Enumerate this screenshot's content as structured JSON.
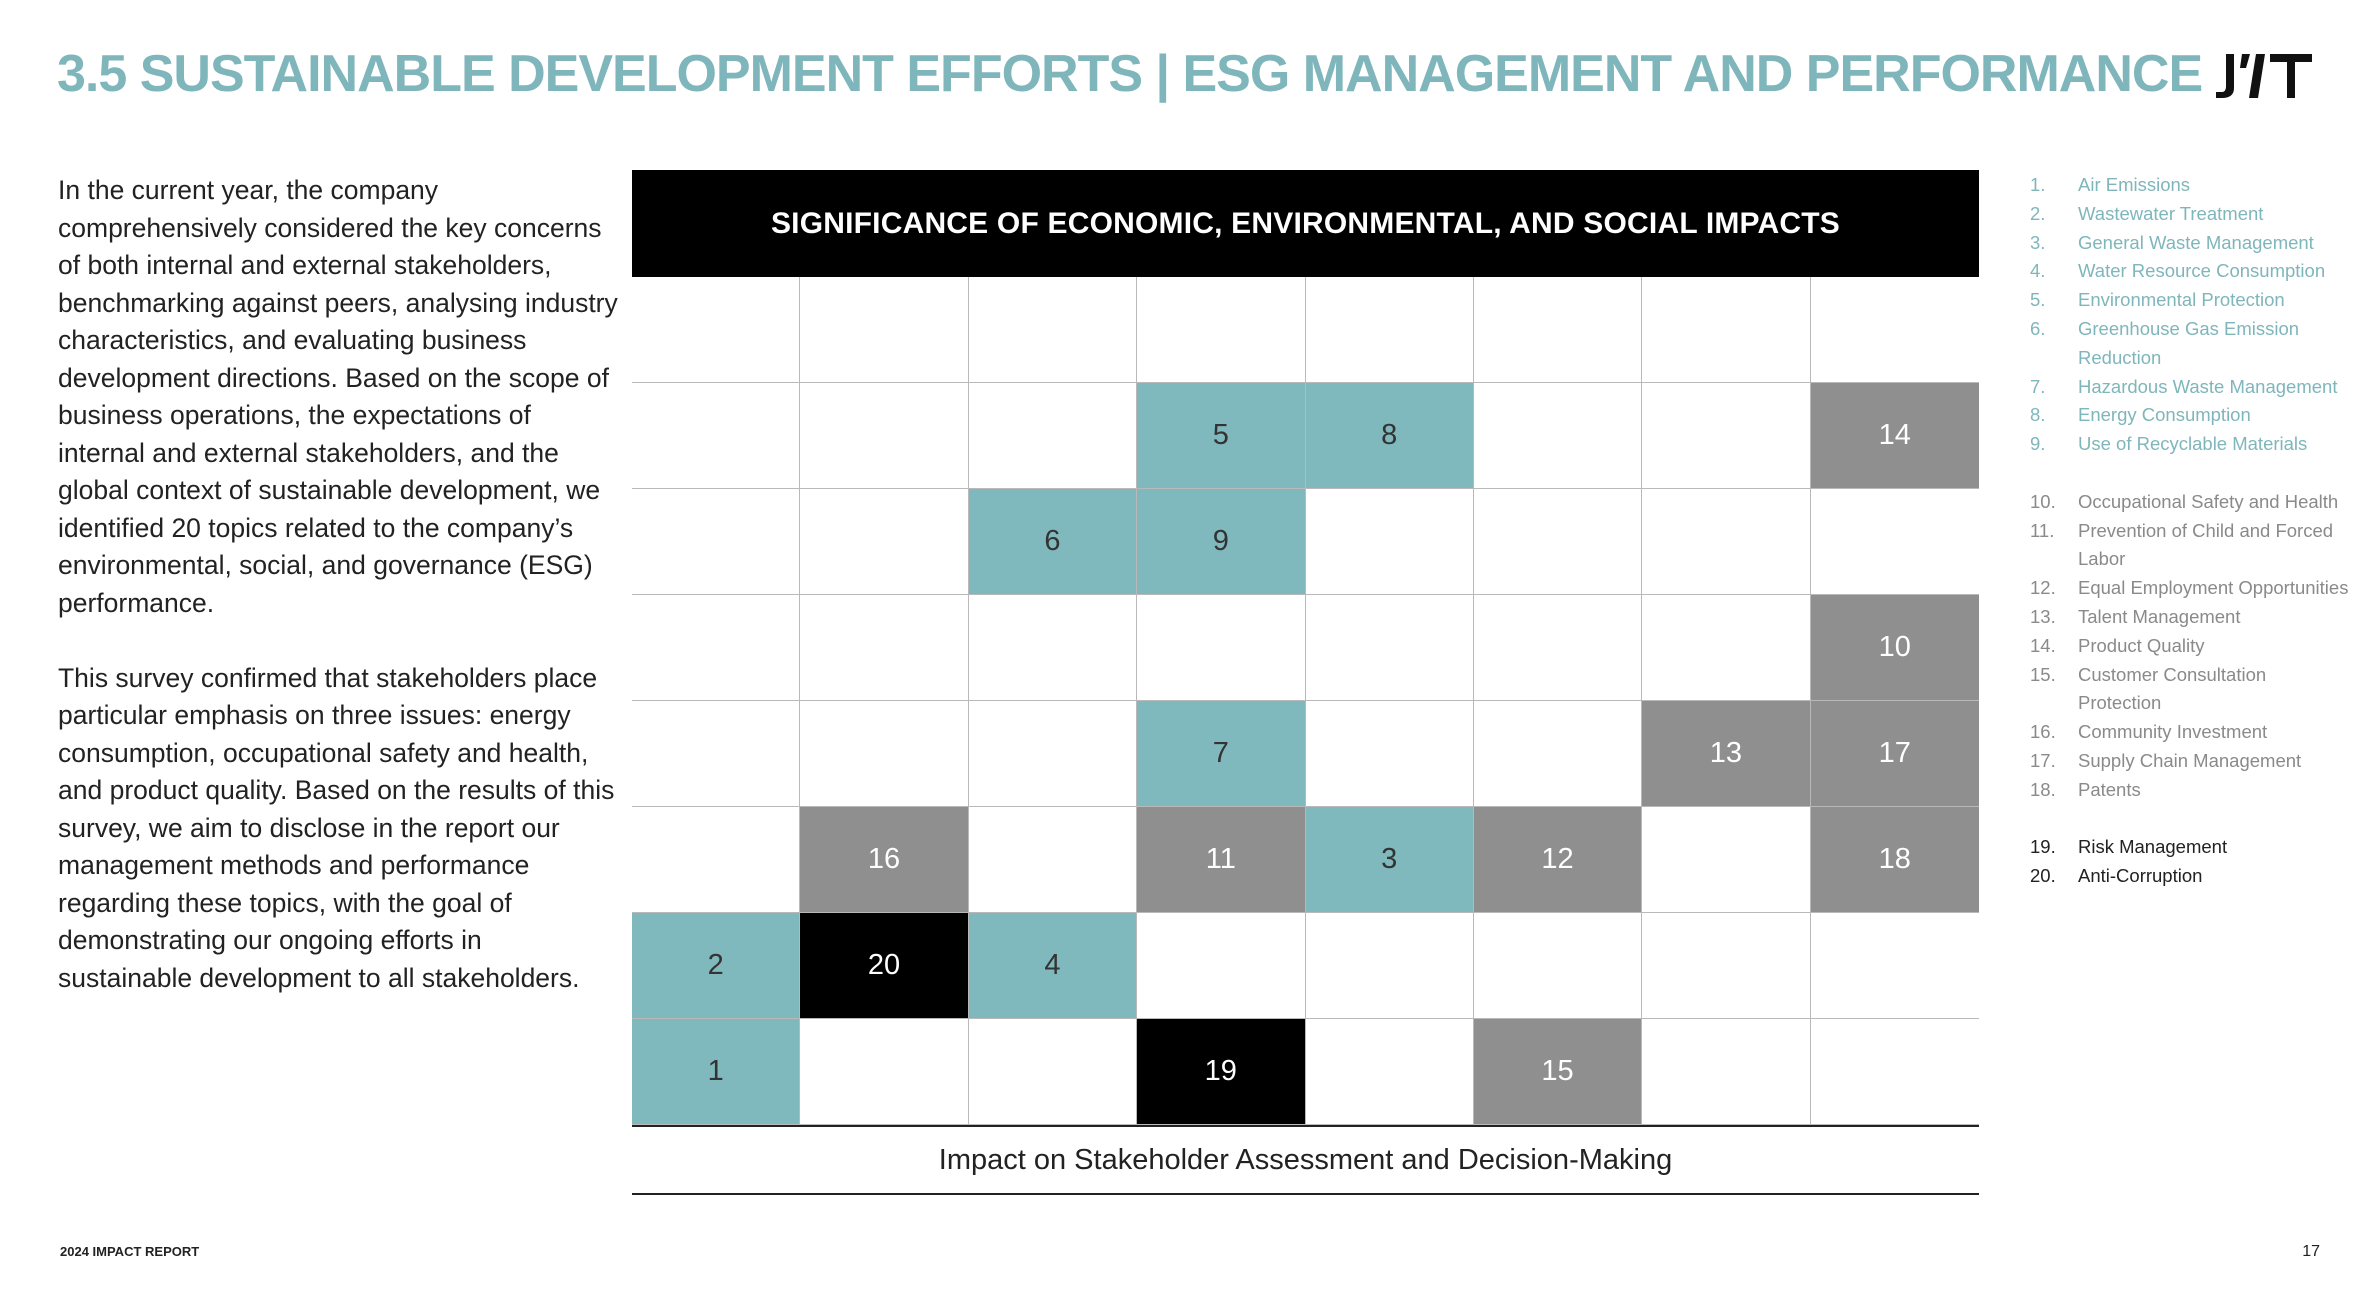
{
  "header": {
    "title": "3.5 SUSTAINABLE DEVELOPMENT EFFORTS  |  ESG MANAGEMENT AND PERFORMANCE",
    "logo_text": "JYT"
  },
  "intro": {
    "paragraph1": "In the current year, the company comprehensively considered the key concerns of both internal and external stakeholders, benchmarking against peers, analysing industry characteristics, and evaluating business development directions. Based on the scope of business operations, the expectations of internal and external stakeholders, and the global context of sustainable development, we identified 20 topics related to the company’s environmental, social, and governance (ESG) performance.",
    "paragraph2": "This survey confirmed that stakeholders place particular emphasis on three issues: energy consumption, occupational safety and health, and product quality. Based on the results of this survey, we aim to disclose in the report our management methods and performance regarding these topics, with the goal of demonstrating our ongoing efforts in sustainable development to all stakeholders."
  },
  "matrix": {
    "title": "SIGNIFICANCE OF ECONOMIC, ENVIRONMENTAL, AND SOCIAL IMPACTS",
    "x_axis_label": "Impact on Stakeholder Assessment and Decision-Making",
    "colors": {
      "environmental": "#7fb8bd",
      "social": "#8f8f8f",
      "governance": "#000000"
    },
    "rows": [
      [
        "",
        "",
        "",
        "",
        "",
        "",
        "",
        ""
      ],
      [
        "",
        "",
        "",
        "5",
        "8",
        "",
        "",
        "14"
      ],
      [
        "",
        "",
        "6",
        "9",
        "",
        "",
        "",
        ""
      ],
      [
        "",
        "",
        "",
        "",
        "",
        "",
        "",
        "10"
      ],
      [
        "",
        "",
        "",
        "7",
        "",
        "",
        "13",
        "17"
      ],
      [
        "",
        "16",
        "",
        "11",
        "3",
        "12",
        "",
        "18"
      ],
      [
        "2",
        "20",
        "4",
        "",
        "",
        "",
        "",
        ""
      ],
      [
        "1",
        "",
        "",
        "19",
        "",
        "15",
        "",
        ""
      ]
    ],
    "categories": {
      "1": "teal",
      "2": "teal",
      "3": "teal",
      "4": "teal",
      "5": "teal",
      "6": "teal",
      "7": "teal",
      "8": "teal",
      "9": "teal",
      "10": "gray",
      "11": "gray",
      "12": "gray",
      "13": "gray",
      "14": "gray",
      "15": "gray",
      "16": "gray",
      "17": "gray",
      "18": "gray",
      "19": "black",
      "20": "black"
    }
  },
  "legend": {
    "environmental": [
      {
        "num": "1.",
        "label": "Air Emissions"
      },
      {
        "num": "2.",
        "label": "Wastewater Treatment"
      },
      {
        "num": "3.",
        "label": "General Waste Management"
      },
      {
        "num": "4.",
        "label": "Water Resource Consumption"
      },
      {
        "num": "5.",
        "label": "Environmental Protection"
      },
      {
        "num": "6.",
        "label": "Greenhouse Gas Emission Reduction"
      },
      {
        "num": "7.",
        "label": "Hazardous Waste Management"
      },
      {
        "num": "8.",
        "label": "Energy Consumption"
      },
      {
        "num": "9.",
        "label": "Use of Recyclable Materials"
      }
    ],
    "social": [
      {
        "num": "10.",
        "label": "Occupational Safety and Health"
      },
      {
        "num": "11.",
        "label": "Prevention of Child and Forced Labor"
      },
      {
        "num": "12.",
        "label": "Equal Employment Opportunities"
      },
      {
        "num": "13.",
        "label": "Talent Management"
      },
      {
        "num": "14.",
        "label": "Product Quality"
      },
      {
        "num": "15.",
        "label": "Customer Consultation Protection"
      },
      {
        "num": "16.",
        "label": "Community Investment"
      },
      {
        "num": "17.",
        "label": "Supply Chain Management"
      },
      {
        "num": "18.",
        "label": "Patents"
      }
    ],
    "governance": [
      {
        "num": "19.",
        "label": "Risk Management"
      },
      {
        "num": "20.",
        "label": "Anti-Corruption"
      }
    ]
  },
  "footer": {
    "report_name": "2024 IMPACT REPORT",
    "page_number": "17"
  }
}
